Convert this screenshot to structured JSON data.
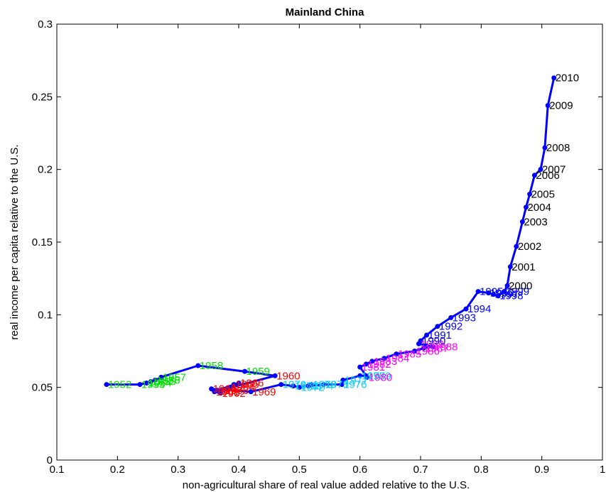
{
  "chart_data": {
    "type": "line",
    "title": "Mainland China",
    "xlabel": "non-agricultural share of real value added relative to the U.S.",
    "ylabel": "real income per capita relative to the U.S.",
    "xlim": [
      0.1,
      1.0
    ],
    "ylim": [
      0,
      0.3
    ],
    "xticks": [
      "0.1",
      "0.2",
      "0.3",
      "0.4",
      "0.5",
      "0.6",
      "0.7",
      "0.8",
      "0.9",
      "1"
    ],
    "yticks": [
      "0",
      "0.05",
      "0.1",
      "0.15",
      "0.2",
      "0.25",
      "0.3"
    ],
    "line_color": "#0000ff",
    "points": [
      {
        "year": "1952",
        "x": 0.182,
        "y": 0.052,
        "color": "#00dd00"
      },
      {
        "year": "1953",
        "x": 0.237,
        "y": 0.052,
        "color": "#00dd00"
      },
      {
        "year": "1954",
        "x": 0.248,
        "y": 0.053,
        "color": "#00dd00"
      },
      {
        "year": "1955",
        "x": 0.255,
        "y": 0.054,
        "color": "#00dd00"
      },
      {
        "year": "1956",
        "x": 0.262,
        "y": 0.055,
        "color": "#00dd00"
      },
      {
        "year": "1957",
        "x": 0.272,
        "y": 0.057,
        "color": "#00dd00"
      },
      {
        "year": "1958",
        "x": 0.333,
        "y": 0.065,
        "color": "#00dd00"
      },
      {
        "year": "1959",
        "x": 0.41,
        "y": 0.061,
        "color": "#00dd00"
      },
      {
        "year": "1960",
        "x": 0.46,
        "y": 0.058,
        "color": "#ff0000"
      },
      {
        "year": "1961",
        "x": 0.36,
        "y": 0.047,
        "color": "#ff0000"
      },
      {
        "year": "1962",
        "x": 0.37,
        "y": 0.046,
        "color": "#ff0000"
      },
      {
        "year": "1963",
        "x": 0.375,
        "y": 0.048,
        "color": "#ff0000"
      },
      {
        "year": "1964",
        "x": 0.385,
        "y": 0.05,
        "color": "#ff0000"
      },
      {
        "year": "1965",
        "x": 0.392,
        "y": 0.052,
        "color": "#ff0000"
      },
      {
        "year": "1966",
        "x": 0.4,
        "y": 0.053,
        "color": "#ff0000"
      },
      {
        "year": "1967",
        "x": 0.365,
        "y": 0.048,
        "color": "#ff0000"
      },
      {
        "year": "1968",
        "x": 0.355,
        "y": 0.049,
        "color": "#ff0000"
      },
      {
        "year": "1969",
        "x": 0.42,
        "y": 0.047,
        "color": "#ff0000"
      },
      {
        "year": "1970",
        "x": 0.47,
        "y": 0.052,
        "color": "#00ccff"
      },
      {
        "year": "1971",
        "x": 0.49,
        "y": 0.051,
        "color": "#00ccff"
      },
      {
        "year": "1972",
        "x": 0.5,
        "y": 0.05,
        "color": "#00ccff"
      },
      {
        "year": "1973",
        "x": 0.52,
        "y": 0.052,
        "color": "#00ccff"
      },
      {
        "year": "1974",
        "x": 0.515,
        "y": 0.051,
        "color": "#00ccff"
      },
      {
        "year": "1975",
        "x": 0.54,
        "y": 0.052,
        "color": "#00ccff"
      },
      {
        "year": "1976",
        "x": 0.57,
        "y": 0.052,
        "color": "#00ccff"
      },
      {
        "year": "1977",
        "x": 0.572,
        "y": 0.055,
        "color": "#00ccff"
      },
      {
        "year": "1978",
        "x": 0.6,
        "y": 0.058,
        "color": "#00ccff"
      },
      {
        "year": "1979",
        "x": 0.61,
        "y": 0.058,
        "color": "#00ccff"
      },
      {
        "year": "1980",
        "x": 0.612,
        "y": 0.057,
        "color": "#ff00ff"
      },
      {
        "year": "1981",
        "x": 0.6,
        "y": 0.064,
        "color": "#ff00ff"
      },
      {
        "year": "1982",
        "x": 0.61,
        "y": 0.066,
        "color": "#ff00ff"
      },
      {
        "year": "1983",
        "x": 0.62,
        "y": 0.068,
        "color": "#ff00ff"
      },
      {
        "year": "1984",
        "x": 0.64,
        "y": 0.07,
        "color": "#ff00ff"
      },
      {
        "year": "1985",
        "x": 0.66,
        "y": 0.073,
        "color": "#ff00ff"
      },
      {
        "year": "1986",
        "x": 0.69,
        "y": 0.075,
        "color": "#ff00ff"
      },
      {
        "year": "1987",
        "x": 0.705,
        "y": 0.077,
        "color": "#ff00ff"
      },
      {
        "year": "1988",
        "x": 0.72,
        "y": 0.078,
        "color": "#ff00ff"
      },
      {
        "year": "1989",
        "x": 0.697,
        "y": 0.08,
        "color": "#ff00ff"
      },
      {
        "year": "1990",
        "x": 0.7,
        "y": 0.082,
        "color": "#0000ff"
      },
      {
        "year": "1991",
        "x": 0.71,
        "y": 0.086,
        "color": "#0000ff"
      },
      {
        "year": "1992",
        "x": 0.728,
        "y": 0.092,
        "color": "#0000ff"
      },
      {
        "year": "1993",
        "x": 0.75,
        "y": 0.098,
        "color": "#0000ff"
      },
      {
        "year": "1994",
        "x": 0.775,
        "y": 0.104,
        "color": "#0000ff"
      },
      {
        "year": "1995",
        "x": 0.795,
        "y": 0.116,
        "color": "#0000ff"
      },
      {
        "year": "1996",
        "x": 0.812,
        "y": 0.115,
        "color": "#0000ff"
      },
      {
        "year": "1997",
        "x": 0.82,
        "y": 0.114,
        "color": "#0000ff"
      },
      {
        "year": "1998",
        "x": 0.828,
        "y": 0.113,
        "color": "#0000ff"
      },
      {
        "year": "1999",
        "x": 0.838,
        "y": 0.116,
        "color": "#0000ff"
      },
      {
        "year": "2000",
        "x": 0.843,
        "y": 0.12,
        "color": "#000000"
      },
      {
        "year": "2001",
        "x": 0.848,
        "y": 0.133,
        "color": "#000000"
      },
      {
        "year": "2002",
        "x": 0.858,
        "y": 0.147,
        "color": "#000000"
      },
      {
        "year": "2003",
        "x": 0.868,
        "y": 0.164,
        "color": "#000000"
      },
      {
        "year": "2004",
        "x": 0.874,
        "y": 0.174,
        "color": "#000000"
      },
      {
        "year": "2005",
        "x": 0.88,
        "y": 0.183,
        "color": "#000000"
      },
      {
        "year": "2006",
        "x": 0.888,
        "y": 0.196,
        "color": "#000000"
      },
      {
        "year": "2007",
        "x": 0.898,
        "y": 0.2,
        "color": "#000000"
      },
      {
        "year": "2008",
        "x": 0.905,
        "y": 0.215,
        "color": "#000000"
      },
      {
        "year": "2009",
        "x": 0.91,
        "y": 0.244,
        "color": "#000000"
      },
      {
        "year": "2010",
        "x": 0.92,
        "y": 0.263,
        "color": "#000000"
      }
    ]
  }
}
